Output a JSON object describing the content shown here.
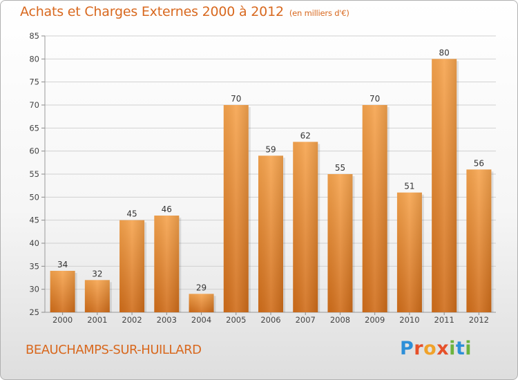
{
  "header": {
    "title": "Achats et Charges Externes 2000 à 2012",
    "subtitle": "(en milliers d'€)"
  },
  "footer": {
    "commune": "BEAUCHAMPS-SUR-HUILLARD",
    "logo_letters": [
      "P",
      "r",
      "o",
      "x",
      "i",
      "t",
      "i"
    ]
  },
  "colors": {
    "title": "#d8681e",
    "bar_top": "#f6a44e",
    "bar_bottom": "#d06d1a",
    "grid": "#d0d0d0"
  },
  "chart_data": {
    "type": "bar",
    "title": "Achats et Charges Externes 2000 à 2012",
    "subtitle": "(en milliers d'€)",
    "xlabel": "",
    "ylabel": "",
    "categories": [
      "2000",
      "2001",
      "2002",
      "2003",
      "2004",
      "2005",
      "2006",
      "2007",
      "2008",
      "2009",
      "2010",
      "2011",
      "2012"
    ],
    "values": [
      34,
      32,
      45,
      46,
      29,
      70,
      59,
      62,
      55,
      70,
      51,
      80,
      56
    ],
    "ylim": [
      25,
      85
    ],
    "yticks": [
      25,
      30,
      35,
      40,
      45,
      50,
      55,
      60,
      65,
      70,
      75,
      80,
      85
    ],
    "grid": true,
    "data_labels": true
  }
}
